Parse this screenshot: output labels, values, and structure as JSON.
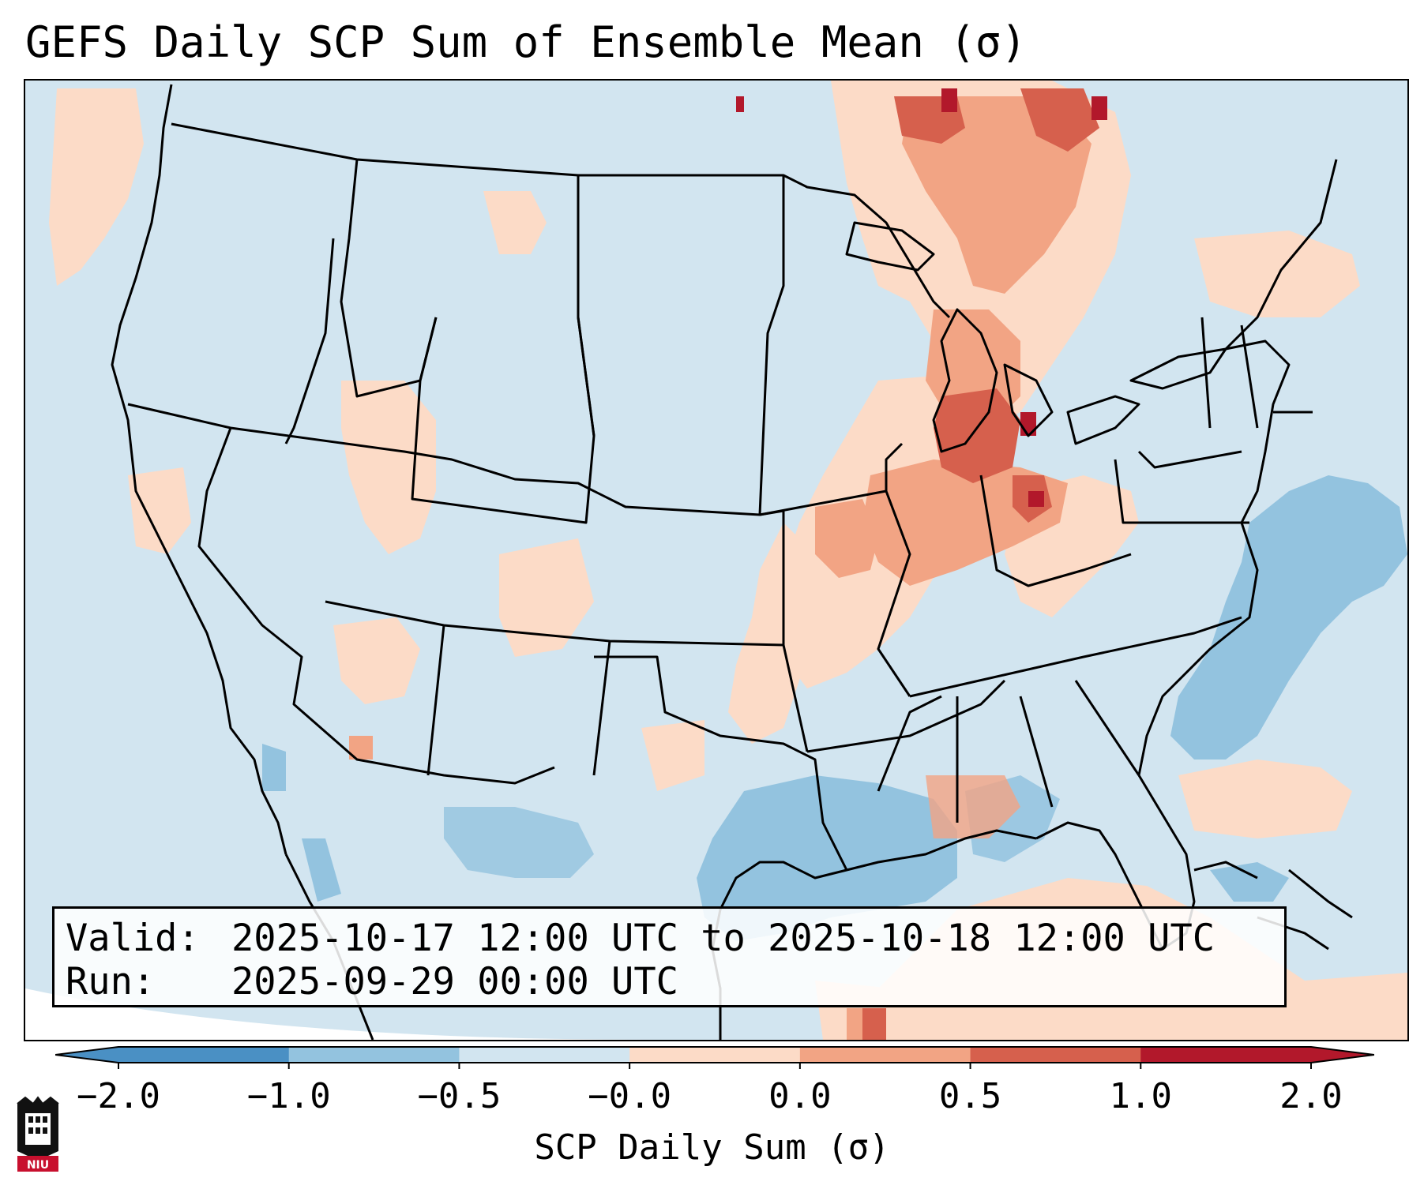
{
  "title": "GEFS Daily SCP Sum of Ensemble Mean (σ)",
  "info": {
    "valid_label": "Valid:",
    "valid_value": "2025-10-17 12:00 UTC to 2025-10-18 12:00 UTC",
    "run_label": "Run:",
    "run_value": "2025-09-29 00:00 UTC"
  },
  "colorbar": {
    "label": "SCP Daily Sum (σ)",
    "ticks": [
      "−2.0",
      "−1.0",
      "−0.5",
      "−0.0",
      "0.0",
      "0.5",
      "1.0",
      "2.0"
    ],
    "colors": [
      "#4a90c4",
      "#93c3df",
      "#d2e5f0",
      "#f7f7f7",
      "#fcdbc7",
      "#f2a484",
      "#d6604d",
      "#b2182b"
    ],
    "extend": "both"
  },
  "map": {
    "region": "Contiguous United States",
    "ocean_color": "#d2e5f0",
    "gulf_color": "#93c3df",
    "highlight_regions": [
      {
        "area": "Michigan / Indiana / Illinois",
        "level": 1.0
      },
      {
        "area": "Ontario",
        "level": 1.0
      },
      {
        "area": "Arkansas / Missouri / Tennessee",
        "level": 0.5
      },
      {
        "area": "Western Atlantic",
        "level": -0.5
      },
      {
        "area": "Gulf of Mexico",
        "level": -0.5
      }
    ]
  },
  "logo": {
    "text": "NIU"
  }
}
